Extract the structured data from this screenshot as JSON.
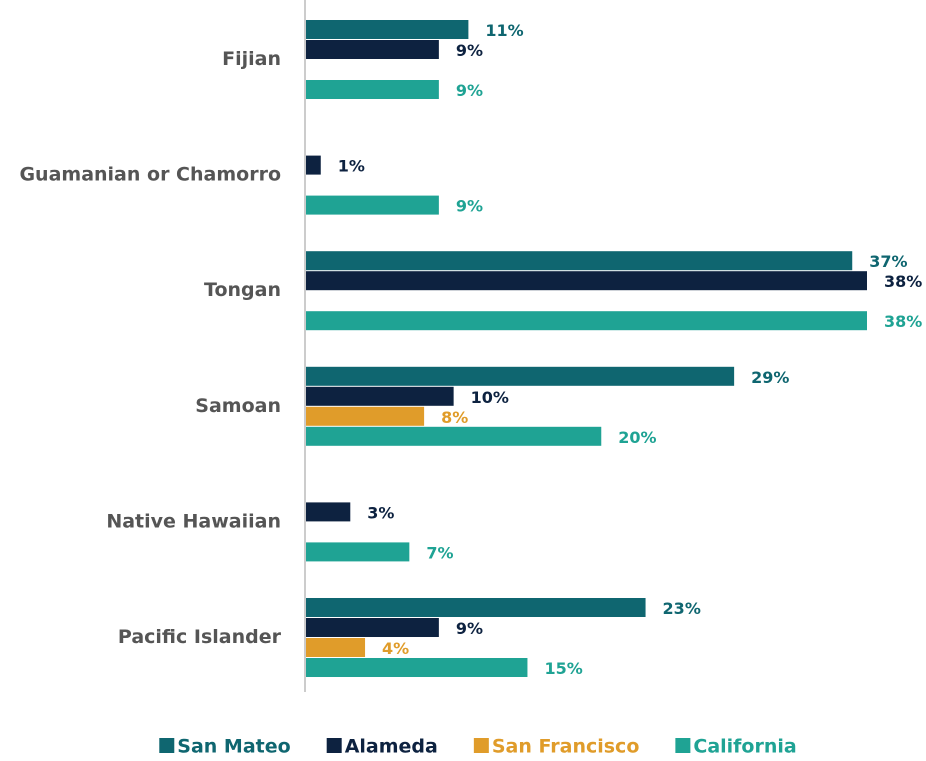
{
  "chart_data": {
    "type": "bar",
    "orientation": "horizontal",
    "categories": [
      "Fijian",
      "Guamanian or Chamorro",
      "Tongan",
      "Samoan",
      "Native Hawaiian",
      "Pacific Islander"
    ],
    "series": [
      {
        "name": "San Mateo",
        "color": "#0f6670",
        "values": [
          11,
          null,
          37,
          29,
          null,
          23
        ],
        "value_labels": [
          "11%",
          null,
          "37%",
          "29%",
          null,
          "23%"
        ]
      },
      {
        "name": "Alameda",
        "color": "#0d2240",
        "values": [
          9,
          1,
          38,
          10,
          3,
          9
        ],
        "value_labels": [
          "9%",
          "1%",
          "38%",
          "10%",
          "3%",
          "9%"
        ]
      },
      {
        "name": "San Francisco",
        "color": "#e09c2a",
        "values": [
          null,
          null,
          null,
          8,
          null,
          4
        ],
        "value_labels": [
          null,
          null,
          null,
          "8%",
          null,
          "4%"
        ]
      },
      {
        "name": "California",
        "color": "#1fa394",
        "values": [
          9,
          9,
          38,
          20,
          7,
          15
        ],
        "value_labels": [
          "9%",
          "9%",
          "38%",
          "20%",
          "7%",
          "15%"
        ]
      }
    ],
    "legend": "bottom"
  }
}
